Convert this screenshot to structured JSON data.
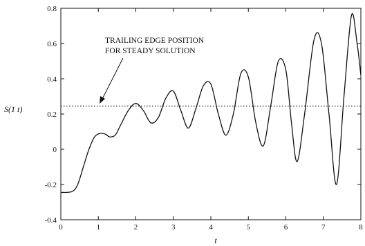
{
  "chart_data": {
    "type": "line",
    "xlabel": "t",
    "ylabel": "S(1 t)",
    "xlim": [
      0,
      8
    ],
    "ylim": [
      -0.4,
      0.8
    ],
    "grid": false,
    "x_ticks": [
      0,
      1,
      2,
      3,
      4,
      5,
      6,
      7,
      8
    ],
    "y_ticks": [
      -0.4,
      -0.2,
      0,
      0.2,
      0.4,
      0.6,
      0.8
    ],
    "x_tick_labels": [
      "0",
      "1",
      "2",
      "3",
      "4",
      "5",
      "6",
      "7",
      "8"
    ],
    "y_tick_labels": [
      "-0.4",
      "-0.2",
      "0",
      "0.2",
      "0.4",
      "0.6",
      "0.8"
    ],
    "series": [
      {
        "style": "solid",
        "x": [
          0,
          0.3,
          0.45,
          0.6,
          0.75,
          0.9,
          1.05,
          1.2,
          1.3,
          1.45,
          1.6,
          1.8,
          2.0,
          2.2,
          2.4,
          2.6,
          2.8,
          3.0,
          3.2,
          3.4,
          3.6,
          3.8,
          4.0,
          4.2,
          4.4,
          4.6,
          4.8,
          5.0,
          5.2,
          5.4,
          5.6,
          5.8,
          6.0,
          6.15,
          6.3,
          6.5,
          6.75,
          6.95,
          7.15,
          7.35,
          7.55,
          7.75,
          7.9,
          8.0
        ],
        "y": [
          -0.245,
          -0.24,
          -0.2,
          -0.1,
          0.0,
          0.07,
          0.09,
          0.085,
          0.07,
          0.08,
          0.14,
          0.22,
          0.26,
          0.22,
          0.15,
          0.18,
          0.29,
          0.33,
          0.22,
          0.12,
          0.23,
          0.36,
          0.37,
          0.2,
          0.08,
          0.2,
          0.43,
          0.41,
          0.15,
          0.02,
          0.25,
          0.5,
          0.45,
          0.15,
          -0.07,
          0.2,
          0.62,
          0.6,
          0.2,
          -0.2,
          0.3,
          0.76,
          0.6,
          0.42
        ]
      },
      {
        "style": "dotted",
        "x": [
          0,
          8
        ],
        "y": [
          0.245,
          0.245
        ]
      }
    ],
    "annotations": [
      {
        "line1": "TRAILING EDGE POSITION",
        "line2": "FOR STEADY SOLUTION"
      }
    ]
  }
}
